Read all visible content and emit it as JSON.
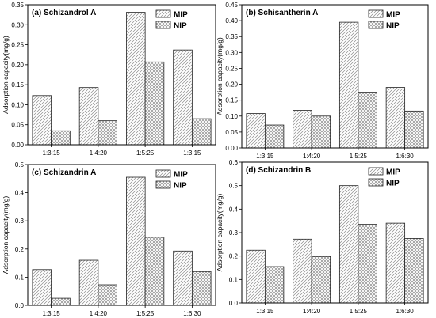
{
  "chart_data": [
    {
      "type": "bar",
      "title": "(a) Schizandrol A",
      "ylabel": "Adsorption capacity(mg/g)",
      "xlabel": "",
      "categories": [
        "1:3:15",
        "1:4:20",
        "1:5:25",
        "1:3:15"
      ],
      "series": [
        {
          "name": "MIP",
          "values": [
            0.123,
            0.143,
            0.331,
            0.237
          ]
        },
        {
          "name": "NIP",
          "values": [
            0.035,
            0.06,
            0.207,
            0.065
          ]
        }
      ],
      "ylim": [
        0,
        0.35
      ],
      "yticks": [
        "0.00",
        "0.05",
        "0.10",
        "0.15",
        "0.20",
        "0.25",
        "0.30",
        "0.35"
      ],
      "legend": "top-right",
      "grid": false
    },
    {
      "type": "bar",
      "title": "(b) Schisantherin A",
      "ylabel": "Adsorption capacity(mg/g)",
      "xlabel": "",
      "categories": [
        "1:3:15",
        "1:4:20",
        "1:5:25",
        "1:6:30"
      ],
      "series": [
        {
          "name": "MIP",
          "values": [
            0.108,
            0.118,
            0.395,
            0.19
          ]
        },
        {
          "name": "NIP",
          "values": [
            0.072,
            0.1,
            0.175,
            0.116
          ]
        }
      ],
      "ylim": [
        0,
        0.45
      ],
      "yticks": [
        "0.00",
        "0.05",
        "0.10",
        "0.15",
        "0.20",
        "0.25",
        "0.30",
        "0.35",
        "0.40",
        "0.45"
      ],
      "legend": "top-right",
      "grid": false
    },
    {
      "type": "bar",
      "title": "(c) Schizandrin A",
      "ylabel": "Adsorption capacity(mg/g)",
      "xlabel": "",
      "categories": [
        "1:3:15",
        "1:4:20",
        "1:5:25",
        "1:6:30"
      ],
      "series": [
        {
          "name": "MIP",
          "values": [
            0.127,
            0.16,
            0.455,
            0.193
          ]
        },
        {
          "name": "NIP",
          "values": [
            0.025,
            0.073,
            0.242,
            0.12
          ]
        }
      ],
      "ylim": [
        0,
        0.5
      ],
      "yticks": [
        "0.0",
        "0.1",
        "0.2",
        "0.3",
        "0.4",
        "0.5"
      ],
      "legend": "top-right",
      "grid": false
    },
    {
      "type": "bar",
      "title": "(d) Schizandrin B",
      "ylabel": "Adsorption capacity(mg/g)",
      "xlabel": "",
      "categories": [
        "1:3:15",
        "1:4:20",
        "1:5:25",
        "1:6:30"
      ],
      "series": [
        {
          "name": "MIP",
          "values": [
            0.225,
            0.272,
            0.5,
            0.34
          ]
        },
        {
          "name": "NIP",
          "values": [
            0.155,
            0.198,
            0.335,
            0.275
          ]
        }
      ],
      "ylim": [
        0,
        0.6
      ],
      "yticks": [
        "0.0",
        "0.1",
        "0.2",
        "0.3",
        "0.4",
        "0.5",
        "0.6"
      ],
      "legend": "top-right",
      "grid": false
    }
  ]
}
